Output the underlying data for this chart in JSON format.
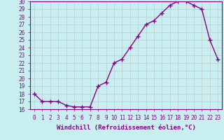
{
  "x": [
    0,
    1,
    2,
    3,
    4,
    5,
    6,
    7,
    8,
    9,
    10,
    11,
    12,
    13,
    14,
    15,
    16,
    17,
    18,
    19,
    20,
    21,
    22,
    23
  ],
  "y": [
    18,
    17,
    17,
    17,
    16.5,
    16.3,
    16.3,
    16.3,
    19,
    19.5,
    22,
    22.5,
    24,
    25.5,
    27,
    27.5,
    28.5,
    29.5,
    30,
    30,
    29.5,
    29,
    25,
    22.5
  ],
  "line_color": "#880088",
  "marker": "+",
  "marker_size": 4,
  "bg_color": "#c8eef0",
  "grid_color": "#bbcccc",
  "xlabel": "Windchill (Refroidissement éolien,°C)",
  "ylim": [
    16,
    30
  ],
  "xlim": [
    -0.5,
    23.5
  ],
  "yticks": [
    16,
    17,
    18,
    19,
    20,
    21,
    22,
    23,
    24,
    25,
    26,
    27,
    28,
    29,
    30
  ],
  "xticks": [
    0,
    1,
    2,
    3,
    4,
    5,
    6,
    7,
    8,
    9,
    10,
    11,
    12,
    13,
    14,
    15,
    16,
    17,
    18,
    19,
    20,
    21,
    22,
    23
  ],
  "tick_fontsize": 5.5,
  "xlabel_fontsize": 6.5,
  "label_color": "#880088",
  "spine_color": "#880088",
  "linewidth": 1.0
}
